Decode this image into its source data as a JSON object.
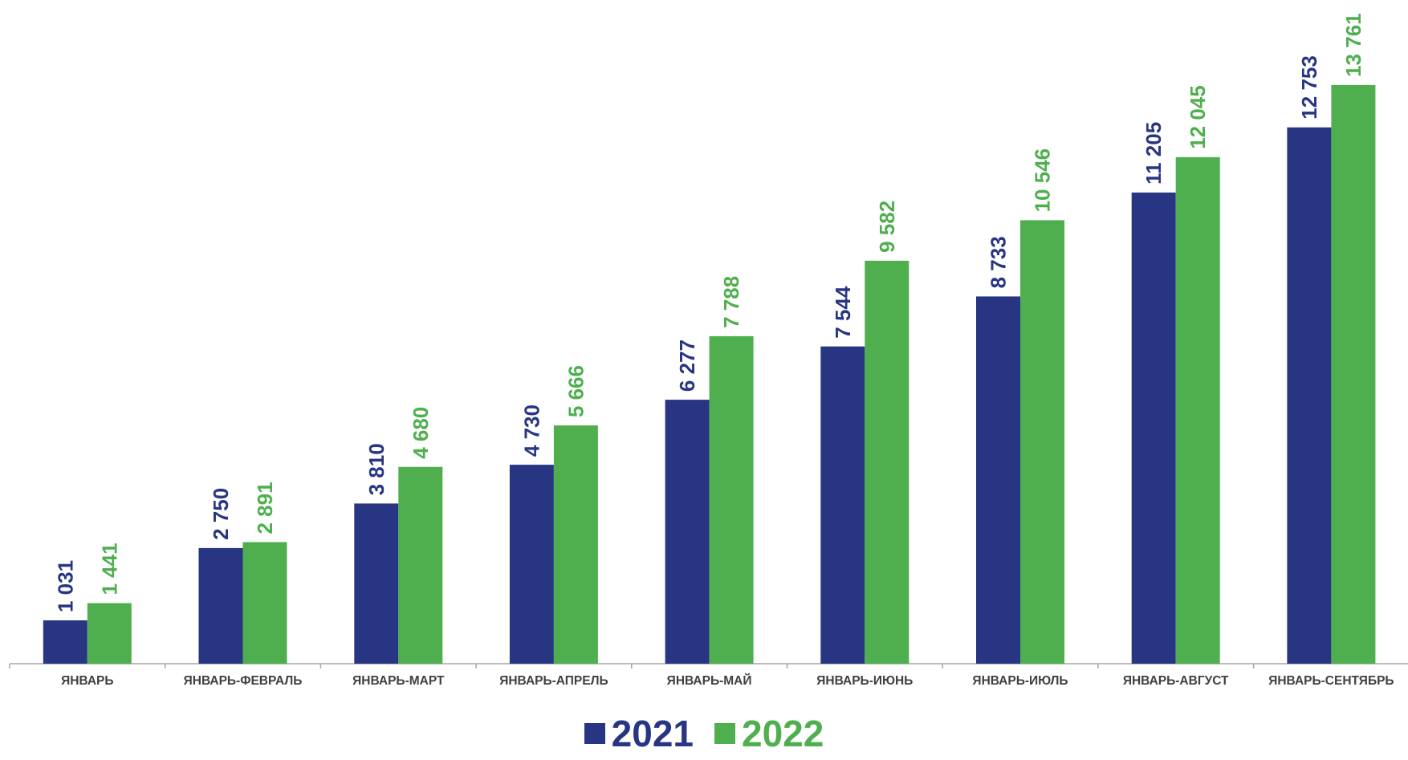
{
  "chart_data": {
    "type": "bar",
    "categories": [
      "ЯНВАРЬ",
      "ЯНВАРЬ-ФЕВРАЛЬ",
      "ЯНВАРЬ-МАРТ",
      "ЯНВАРЬ-АПРЕЛЬ",
      "ЯНВАРЬ-МАЙ",
      "ЯНВАРЬ-ИЮНЬ",
      "ЯНВАРЬ-ИЮЛЬ",
      "ЯНВАРЬ-АВГУСТ",
      "ЯНВАРЬ-СЕНТЯБРЬ"
    ],
    "series": [
      {
        "name": "2021",
        "color": "#283583",
        "values": [
          1031,
          2750,
          3810,
          4730,
          6277,
          7544,
          8733,
          11205,
          12753
        ],
        "labels": [
          "1 031",
          "2 750",
          "3 810",
          "4 730",
          "6 277",
          "7 544",
          "8 733",
          "11 205",
          "12 753"
        ]
      },
      {
        "name": "2022",
        "color": "#4faf4f",
        "values": [
          1441,
          2891,
          4680,
          5666,
          7788,
          9582,
          10546,
          12045,
          13761
        ],
        "labels": [
          "1 441",
          "2 891",
          "4 680",
          "5 666",
          "7 788",
          "9 582",
          "10 546",
          "12 045",
          "13 761"
        ]
      }
    ],
    "ylim": [
      0,
      15000
    ],
    "grid": false,
    "legend_position": "bottom-center"
  }
}
